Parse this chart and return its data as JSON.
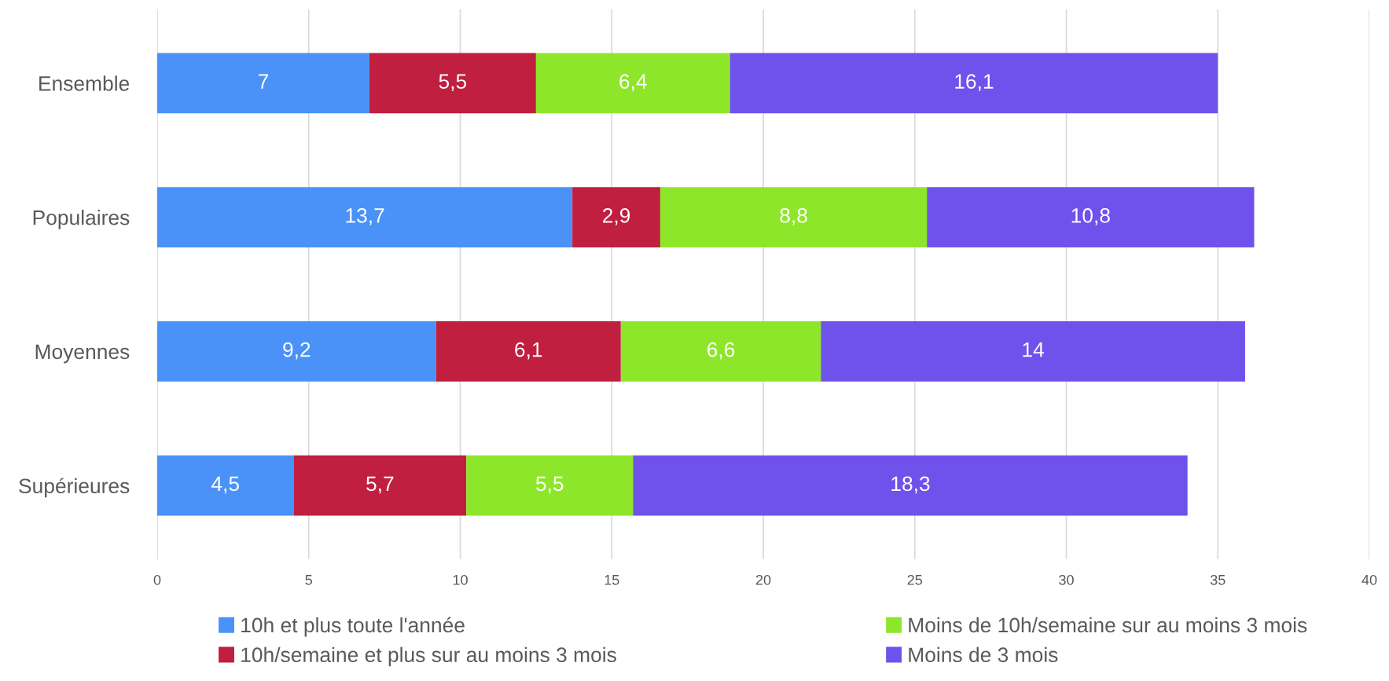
{
  "chart_data": {
    "type": "bar",
    "orientation": "horizontal",
    "stacked": true,
    "categories": [
      "Ensemble",
      "Populaires",
      "Moyennes",
      "Supérieures"
    ],
    "series": [
      {
        "name": "10h et plus toute l'année",
        "color": "#4a92f7",
        "values": [
          7,
          13.7,
          9.2,
          4.5
        ],
        "value_labels": [
          "7",
          "13,7",
          "9,2",
          "4,5"
        ]
      },
      {
        "name": "10h/semaine et plus sur au moins 3 mois",
        "color": "#c01f40",
        "values": [
          5.5,
          2.9,
          6.1,
          5.7
        ],
        "value_labels": [
          "5,5",
          "2,9",
          "6,1",
          "5,7"
        ]
      },
      {
        "name": "Moins de 10h/semaine sur au moins 3 mois",
        "color": "#8ee62a",
        "values": [
          6.4,
          8.8,
          6.6,
          5.5
        ],
        "value_labels": [
          "6,4",
          "8,8",
          "6,6",
          "5,5"
        ]
      },
      {
        "name": "Moins de 3 mois",
        "color": "#6f52ec",
        "values": [
          16.1,
          10.8,
          14,
          18.3
        ],
        "value_labels": [
          "16,1",
          "10,8",
          "14",
          "18,3"
        ]
      }
    ],
    "xlim": [
      0,
      40
    ],
    "xticks": [
      0,
      5,
      10,
      15,
      20,
      25,
      30,
      35,
      40
    ],
    "grid": "x",
    "legend": "bottom"
  }
}
